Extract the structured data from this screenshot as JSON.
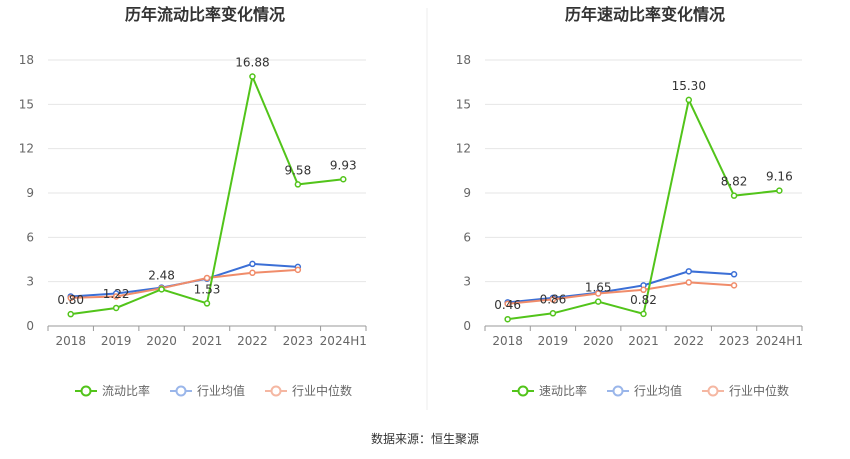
{
  "source": "数据来源：恒生聚源",
  "colors": {
    "main": "#52c41a",
    "avg": "#3b6fd6",
    "median": "#f08c6a",
    "avg_legend": "#9ab6ea",
    "median_legend": "#f5b7a2",
    "grid": "#e6e6e6",
    "axis": "#999999"
  },
  "chart_data": [
    {
      "type": "line",
      "title": "历年流动比率变化情况",
      "categories": [
        "2018",
        "2019",
        "2020",
        "2021",
        "2022",
        "2023",
        "2024H1"
      ],
      "ylim": [
        0,
        18
      ],
      "yticks": [
        "0",
        "3",
        "6",
        "9",
        "12",
        "15",
        "18"
      ],
      "grid": true,
      "legend_position": "bottom",
      "series": [
        {
          "name": "流动比率",
          "values": [
            0.8,
            1.22,
            2.48,
            1.53,
            16.88,
            9.58,
            9.93
          ],
          "labels": [
            "0.80",
            "1.22",
            "2.48",
            "1.53",
            "16.88",
            "9.58",
            "9.93"
          ]
        },
        {
          "name": "行业均值",
          "values": [
            2.0,
            2.2,
            2.6,
            3.2,
            4.2,
            4.0,
            null
          ]
        },
        {
          "name": "行业中位数",
          "values": [
            1.9,
            2.0,
            2.55,
            3.25,
            3.6,
            3.8,
            null
          ]
        }
      ]
    },
    {
      "type": "line",
      "title": "历年速动比率变化情况",
      "categories": [
        "2018",
        "2019",
        "2020",
        "2021",
        "2022",
        "2023",
        "2024H1"
      ],
      "ylim": [
        0,
        18
      ],
      "yticks": [
        "0",
        "3",
        "6",
        "9",
        "12",
        "15",
        "18"
      ],
      "grid": true,
      "legend_position": "bottom",
      "series": [
        {
          "name": "速动比率",
          "values": [
            0.46,
            0.86,
            1.65,
            0.82,
            15.3,
            8.82,
            9.16
          ],
          "labels": [
            "0.46",
            "0.86",
            "1.65",
            "0.82",
            "15.30",
            "8.82",
            "9.16"
          ]
        },
        {
          "name": "行业均值",
          "values": [
            1.6,
            1.9,
            2.25,
            2.75,
            3.7,
            3.5,
            null
          ]
        },
        {
          "name": "行业中位数",
          "values": [
            1.5,
            1.8,
            2.2,
            2.45,
            2.95,
            2.75,
            null
          ]
        }
      ]
    }
  ]
}
